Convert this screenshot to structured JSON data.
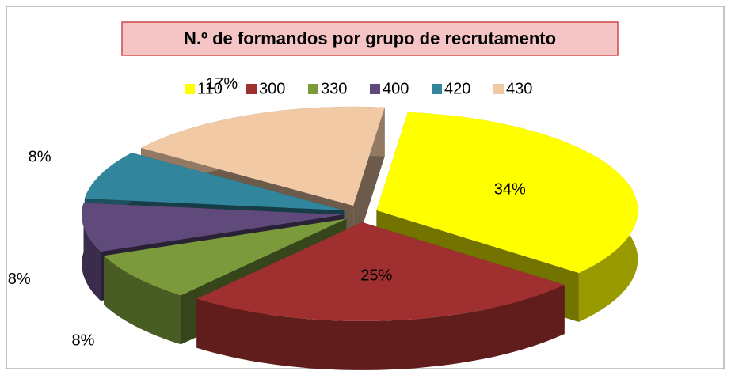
{
  "chart_data": {
    "type": "pie3d",
    "title": "N.º de formandos por grupo de recrutamento",
    "categories": [
      "110",
      "300",
      "330",
      "400",
      "420",
      "430"
    ],
    "values": [
      34,
      25,
      8,
      8,
      8,
      17
    ],
    "value_labels": [
      "34%",
      "25%",
      "8%",
      "8%",
      "8%",
      "17%"
    ],
    "colors": [
      "#ffff00",
      "#a0302f",
      "#7a9a3c",
      "#604a7b",
      "#31859c",
      "#f1c9a5"
    ],
    "legend": "top"
  }
}
